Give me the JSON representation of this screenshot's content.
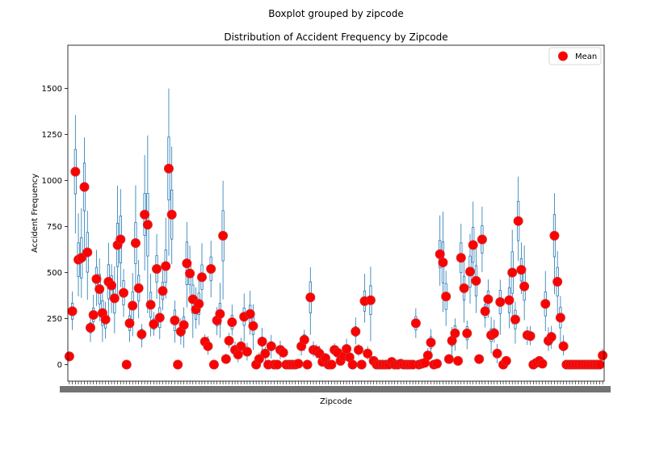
{
  "chart_data": {
    "type": "boxplot",
    "suptitle": "Boxplot grouped by zipcode",
    "title": "Distribution of Accident Frequency by Zipcode",
    "xlabel": "Zipcode",
    "ylabel": "Accident Frequency",
    "ylim": [
      -90,
      1735
    ],
    "yticks": [
      0,
      250,
      500,
      750,
      1000,
      1250,
      1500
    ],
    "grid": false,
    "legend": {
      "entries": [
        "Mean"
      ],
      "placement": "top-right"
    },
    "colors": {
      "box": "#1f77b4",
      "mean_fill": "#ff0000",
      "mean_edge": "#d62728"
    },
    "x_tick_labels_note": "Zipcode tick labels are overlapping and illegible",
    "means": [
      45,
      290,
      1048,
      570,
      580,
      965,
      610,
      200,
      270,
      465,
      410,
      280,
      245,
      450,
      430,
      360,
      650,
      680,
      390,
      0,
      225,
      320,
      660,
      415,
      165,
      815,
      760,
      325,
      220,
      520,
      255,
      400,
      535,
      1065,
      815,
      240,
      0,
      180,
      215,
      550,
      495,
      355,
      300,
      330,
      475,
      125,
      100,
      520,
      0,
      240,
      275,
      700,
      30,
      130,
      230,
      80,
      55,
      100,
      260,
      70,
      275,
      210,
      0,
      30,
      125,
      60,
      0,
      100,
      0,
      0,
      80,
      65,
      0,
      0,
      0,
      0,
      5,
      100,
      135,
      0,
      365,
      80,
      75,
      60,
      15,
      35,
      0,
      0,
      80,
      65,
      20,
      45,
      85,
      40,
      0,
      180,
      80,
      0,
      345,
      60,
      350,
      20,
      0,
      0,
      0,
      0,
      0,
      15,
      0,
      0,
      5,
      0,
      0,
      0,
      0,
      225,
      0,
      5,
      10,
      50,
      120,
      0,
      5,
      600,
      555,
      370,
      30,
      130,
      170,
      20,
      580,
      415,
      170,
      505,
      650,
      455,
      30,
      680,
      290,
      355,
      160,
      170,
      60,
      340,
      0,
      20,
      350,
      500,
      245,
      780,
      515,
      425,
      160,
      155,
      0,
      10,
      20,
      5,
      330,
      130,
      150,
      700,
      450,
      255,
      100,
      0,
      0,
      0,
      0,
      0,
      0,
      0,
      0,
      0,
      0,
      0,
      0,
      50
    ]
  }
}
